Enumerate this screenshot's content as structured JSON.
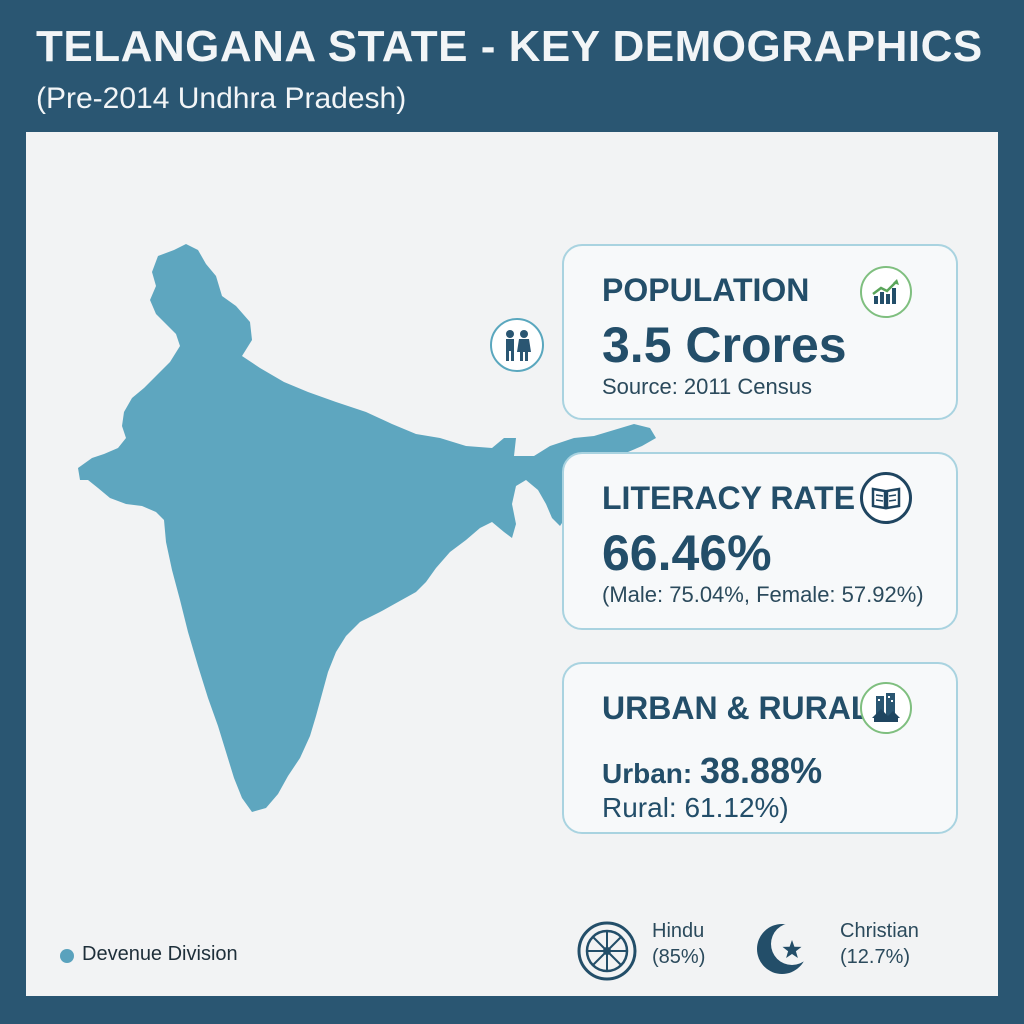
{
  "header": {
    "title": "TELANGANA STATE - KEY DEMOGRAPHICS",
    "subtitle": "(Pre-2014 Undhra Pradesh)"
  },
  "cards": {
    "population": {
      "title": "POPULATION",
      "value": "3.5 Crores",
      "note": "Source: 2011 Census",
      "icon": "growth-chart-icon"
    },
    "literacy": {
      "title": "LITERACY RATE",
      "value": "66.46%",
      "note": "(Male: 75.04%, Female: 57.92%)",
      "icon": "book-icon"
    },
    "urban_rural": {
      "title": "URBAN & RURAL",
      "urban_label": "Urban:",
      "urban_value": "38.88%",
      "rural_label": "Rural: 61.12%)",
      "icon": "city-house-icon"
    }
  },
  "legend": {
    "label": "Devenue Division",
    "color": "#5aa2bd"
  },
  "religion": [
    {
      "name": "Hindu",
      "pct": "(85%)",
      "icon": "dharma-wheel-icon"
    },
    {
      "name": "Christian",
      "pct": "(12.7%)",
      "icon": "crescent-star-icon"
    }
  ],
  "colors": {
    "background": "#2a5672",
    "panel": "#f2f3f4",
    "map": "#5ea6bf",
    "accent_text": "#234e69",
    "card_border": "#a9d3e0"
  }
}
